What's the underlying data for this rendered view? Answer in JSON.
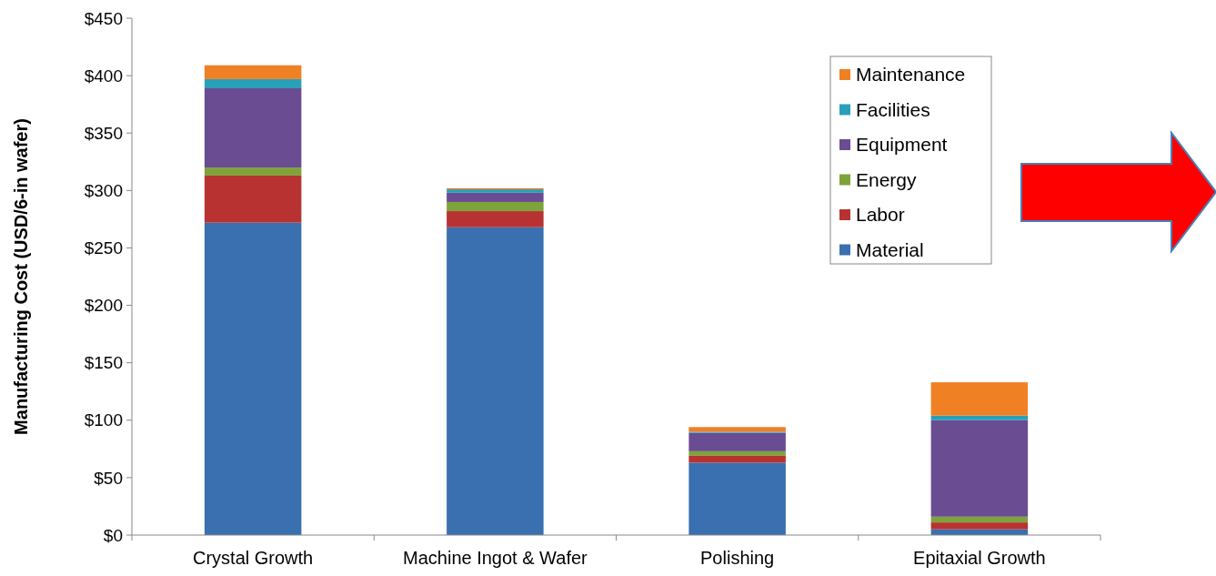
{
  "chart_data": {
    "type": "bar",
    "stacked": true,
    "ylabel": "Manufacturing Cost (USD/6-in wafer)",
    "categories": [
      "Crystal Growth",
      "Machine Ingot & Wafer",
      "Polishing",
      "Epitaxial Growth"
    ],
    "series": [
      {
        "name": "Material",
        "color": "#3a6fb0",
        "values": [
          272,
          268,
          63,
          5
        ]
      },
      {
        "name": "Labor",
        "color": "#b83232",
        "values": [
          41,
          14,
          6,
          6
        ]
      },
      {
        "name": "Energy",
        "color": "#7ea33a",
        "values": [
          7,
          8,
          4,
          5
        ]
      },
      {
        "name": "Equipment",
        "color": "#6a4c93",
        "values": [
          69,
          8,
          16,
          84
        ]
      },
      {
        "name": "Facilities",
        "color": "#2aa0b8",
        "values": [
          8,
          3,
          1,
          4
        ]
      },
      {
        "name": "Maintenance",
        "color": "#f08024",
        "values": [
          12,
          1,
          4,
          29
        ]
      }
    ],
    "ylim": [
      0,
      450
    ],
    "yticks": [
      {
        "value": 0,
        "label": "$0"
      },
      {
        "value": 50,
        "label": "$50"
      },
      {
        "value": 100,
        "label": "$100"
      },
      {
        "value": 150,
        "label": "$150"
      },
      {
        "value": 200,
        "label": "$200"
      },
      {
        "value": 250,
        "label": "$250"
      },
      {
        "value": 300,
        "label": "$300"
      },
      {
        "value": 350,
        "label": "$350"
      },
      {
        "value": 400,
        "label": "$400"
      },
      {
        "value": 450,
        "label": "$450"
      }
    ],
    "grid": false,
    "legend": "top right"
  }
}
